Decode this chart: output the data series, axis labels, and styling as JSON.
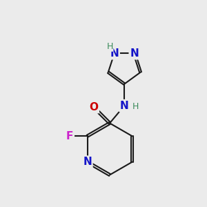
{
  "background_color": "#ebebeb",
  "bond_color": "#1a1a1a",
  "bond_width": 1.5,
  "atom_colors": {
    "N": "#1414c8",
    "O": "#cc0000",
    "F": "#cc22cc",
    "H_gray": "#3a8a5a"
  },
  "font_size_atom": 11,
  "font_size_H": 9,
  "xlim": [
    0,
    10
  ],
  "ylim": [
    0,
    10
  ]
}
